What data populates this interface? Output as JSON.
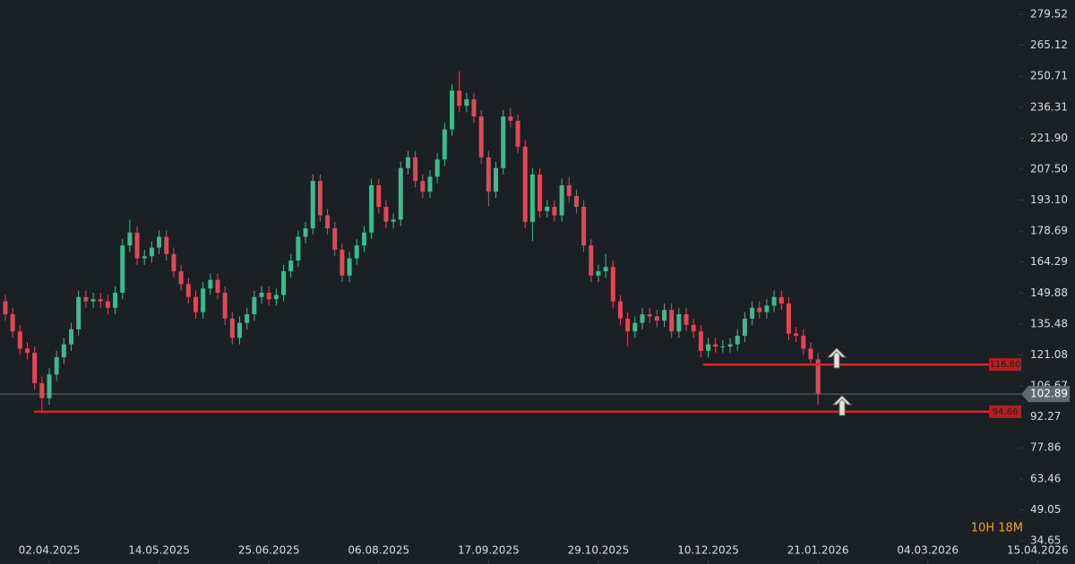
{
  "chart_data": {
    "type": "candlestick",
    "up_color": "#3dbb8c",
    "down_color": "#e0485a",
    "x": [
      -12,
      -10,
      -8,
      -6,
      -4,
      -2,
      0,
      2,
      4,
      6,
      8,
      10,
      12,
      14,
      16,
      18,
      20,
      22,
      24,
      26,
      28,
      30,
      32,
      34,
      36,
      38,
      40,
      42,
      44,
      46,
      48,
      50,
      52,
      54,
      56,
      58,
      60,
      62,
      64,
      66,
      68,
      70,
      72,
      74,
      76,
      78,
      80,
      82,
      84,
      86,
      88,
      90,
      92,
      94,
      96,
      98,
      100,
      102,
      104,
      106,
      108,
      110,
      112,
      114,
      116,
      118,
      120,
      122,
      124,
      126,
      128,
      130,
      132,
      134,
      136,
      138,
      140,
      142,
      144,
      146,
      148,
      150,
      152,
      154,
      156,
      158,
      160,
      162,
      164,
      166,
      168,
      170,
      172,
      174,
      176,
      178,
      180,
      182,
      184,
      186,
      188,
      190,
      192,
      194,
      196,
      198,
      200,
      202,
      204,
      206,
      208,
      210
    ],
    "open": [
      146,
      140,
      132,
      124,
      122,
      108,
      101,
      112,
      120,
      126,
      133,
      148,
      146,
      147,
      146,
      143,
      150,
      172,
      178,
      166,
      167,
      171,
      176,
      168,
      160,
      154,
      148,
      141,
      152,
      156,
      150,
      138,
      129,
      136,
      140,
      148,
      150,
      147,
      149,
      160,
      165,
      176,
      180,
      202,
      186,
      180,
      170,
      158,
      166,
      172,
      178,
      200,
      190,
      183,
      184,
      208,
      213,
      202,
      197,
      204,
      212,
      226,
      244,
      237,
      240,
      232,
      213,
      197,
      208,
      232,
      230,
      218,
      183,
      205,
      188,
      190,
      186,
      200,
      195,
      190,
      172,
      158,
      160,
      162,
      146,
      138,
      132,
      136,
      140,
      139,
      137,
      142,
      132,
      140,
      135,
      132,
      123,
      126,
      125,
      125,
      126,
      130,
      138,
      143,
      141,
      144,
      148,
      145,
      131,
      130,
      124,
      119
    ],
    "high": [
      149,
      143,
      135,
      127,
      125,
      111,
      115,
      123,
      129,
      136,
      151,
      151,
      150,
      150,
      149,
      153,
      175,
      184,
      181,
      170,
      174,
      179,
      179,
      171,
      163,
      157,
      151,
      155,
      159,
      159,
      153,
      141,
      139,
      143,
      151,
      153,
      153,
      152,
      163,
      168,
      179,
      183,
      205,
      205,
      189,
      183,
      173,
      169,
      175,
      181,
      203,
      203,
      193,
      187,
      211,
      216,
      216,
      205,
      207,
      215,
      229,
      247,
      253,
      243,
      243,
      235,
      216,
      211,
      235,
      236,
      233,
      221,
      208,
      208,
      193,
      193,
      203,
      204,
      198,
      193,
      175,
      163,
      168,
      165,
      149,
      141,
      139,
      143,
      143,
      142,
      145,
      145,
      143,
      143,
      138,
      135,
      129,
      129,
      128,
      129,
      133,
      141,
      146,
      146,
      147,
      151,
      151,
      148,
      134,
      133,
      127,
      122
    ],
    "low": [
      137,
      129,
      121,
      119,
      105,
      95,
      98,
      109,
      117,
      123,
      130,
      143,
      143,
      143,
      140,
      140,
      147,
      169,
      163,
      163,
      164,
      168,
      165,
      157,
      151,
      145,
      138,
      138,
      149,
      147,
      135,
      126,
      126,
      133,
      137,
      145,
      144,
      144,
      146,
      157,
      162,
      173,
      177,
      183,
      177,
      167,
      155,
      155,
      163,
      169,
      175,
      187,
      180,
      180,
      181,
      205,
      199,
      194,
      194,
      201,
      209,
      223,
      234,
      234,
      229,
      210,
      190,
      194,
      205,
      227,
      215,
      180,
      174,
      185,
      185,
      183,
      183,
      192,
      187,
      169,
      155,
      155,
      157,
      143,
      135,
      125,
      129,
      133,
      136,
      134,
      134,
      129,
      129,
      132,
      129,
      120,
      120,
      122,
      122,
      122,
      123,
      127,
      135,
      138,
      138,
      141,
      142,
      128,
      127,
      121,
      116,
      98
    ],
    "close": [
      140,
      132,
      124,
      122,
      108,
      101,
      112,
      120,
      126,
      133,
      148,
      146,
      147,
      146,
      143,
      150,
      172,
      178,
      166,
      167,
      171,
      176,
      168,
      160,
      154,
      148,
      141,
      152,
      156,
      150,
      138,
      129,
      136,
      140,
      148,
      150,
      147,
      149,
      160,
      165,
      176,
      180,
      202,
      186,
      180,
      170,
      158,
      166,
      172,
      178,
      200,
      190,
      183,
      184,
      208,
      213,
      202,
      197,
      204,
      212,
      226,
      244,
      237,
      240,
      232,
      213,
      197,
      208,
      232,
      230,
      218,
      183,
      205,
      188,
      190,
      186,
      200,
      195,
      190,
      172,
      158,
      160,
      162,
      146,
      138,
      132,
      136,
      140,
      139,
      137,
      142,
      132,
      140,
      135,
      132,
      123,
      126,
      125,
      125,
      126,
      130,
      138,
      143,
      141,
      144,
      148,
      145,
      131,
      130,
      124,
      119,
      102.89
    ],
    "xlim": [
      -13.46,
      280.2
    ],
    "xticks": [
      {
        "value": 0,
        "label": "02.04.2025"
      },
      {
        "value": 30,
        "label": "14.05.2025"
      },
      {
        "value": 60,
        "label": "25.06.2025"
      },
      {
        "value": 90,
        "label": "06.08.2025"
      },
      {
        "value": 120,
        "label": "17.09.2025"
      },
      {
        "value": 150,
        "label": "29.10.2025"
      },
      {
        "value": 180,
        "label": "10.12.2025"
      },
      {
        "value": 210,
        "label": "21.01.2026"
      },
      {
        "value": 240,
        "label": "04.03.2026"
      },
      {
        "value": 270,
        "label": "15.04.2026"
      }
    ],
    "ylim": [
      23.82,
      286.18
    ],
    "yticks": [
      279.52,
      265.12,
      250.71,
      236.31,
      {
        "value": 221.9,
        "label": "221.90"
      },
      {
        "value": 207.5,
        "label": "207.50"
      },
      {
        "value": 193.1,
        "label": "193.10"
      },
      178.69,
      164.29,
      149.88,
      135.48,
      121.08,
      106.67,
      92.27,
      77.86,
      63.46,
      49.05,
      34.65
    ],
    "levels": [
      {
        "value": 116.6,
        "label": "116.60",
        "x_start": 178.6,
        "color": "#d42a2a"
      },
      {
        "value": 94.66,
        "label": "94.66",
        "x_start": -4.2,
        "color": "#d42a2a"
      }
    ],
    "last_price": 102.89,
    "countdown": "10H 18M"
  }
}
